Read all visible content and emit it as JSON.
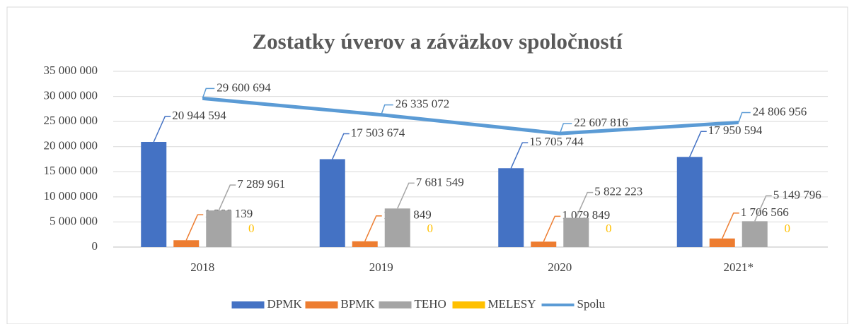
{
  "chart_data": {
    "type": "bar",
    "title": "Zostatky úverov a záväzkov spoločností",
    "categories": [
      "2018",
      "2019",
      "2020",
      "2021*"
    ],
    "series": [
      {
        "name": "DPMK",
        "color": "#4472c4",
        "values": [
          20944594,
          17503674,
          15705744,
          17950594
        ],
        "value_labels": [
          "20 944 594",
          "17 503 674",
          "15 705 744",
          "17 950 594"
        ]
      },
      {
        "name": "BPMK",
        "color": "#ed7d31",
        "values": [
          1366139,
          1149849,
          1079849,
          1706566
        ],
        "value_labels": [
          "1 366 139",
          "1 149 849",
          "1 079 849",
          "1 706 566"
        ]
      },
      {
        "name": "TEHO",
        "color": "#a5a5a5",
        "values": [
          7289961,
          7681549,
          5822223,
          5149796
        ],
        "value_labels": [
          "7 289 961",
          "7 681 549",
          "5 822 223",
          "5 149 796"
        ]
      },
      {
        "name": "MELESY",
        "color": "#ffc000",
        "values": [
          0,
          0,
          0,
          0
        ]
      },
      {
        "name": "Spolu",
        "type": "line",
        "color": "#5b9bd5",
        "values": [
          29600694,
          26335072,
          22607816,
          24806956
        ],
        "value_labels": [
          "29 600 694",
          "26 335 072",
          "22 607 816",
          "24 806 956"
        ]
      }
    ],
    "ylim": [
      0,
      35000000
    ],
    "yticks": [
      0,
      {
        "value": 5000000,
        "label": "5 000 000"
      },
      {
        "value": 10000000,
        "label": "10 000 000"
      },
      {
        "value": 15000000,
        "label": "15 000 000"
      },
      {
        "value": 20000000,
        "label": "20 000 000"
      },
      {
        "value": 25000000,
        "label": "25 000 000"
      },
      {
        "value": 30000000,
        "label": "30 000 000"
      },
      {
        "value": 35000000,
        "label": "35 000 000"
      }
    ],
    "grid": true,
    "legend": "bottom"
  }
}
